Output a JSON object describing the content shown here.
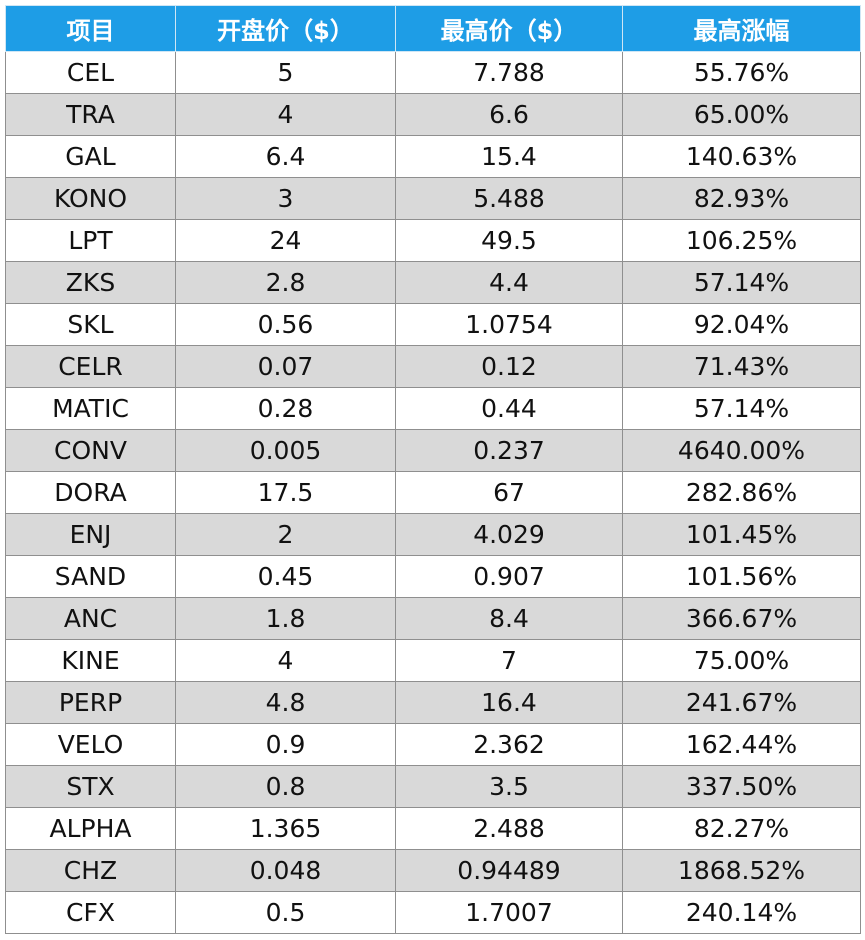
{
  "table": {
    "headers": [
      "项目",
      "开盘价（$）",
      "最高价（$）",
      "最高涨幅"
    ],
    "rows": [
      [
        "CEL",
        "5",
        "7.788",
        "55.76%"
      ],
      [
        "TRA",
        "4",
        "6.6",
        "65.00%"
      ],
      [
        "GAL",
        "6.4",
        "15.4",
        "140.63%"
      ],
      [
        "KONO",
        "3",
        "5.488",
        "82.93%"
      ],
      [
        "LPT",
        "24",
        "49.5",
        "106.25%"
      ],
      [
        "ZKS",
        "2.8",
        "4.4",
        "57.14%"
      ],
      [
        "SKL",
        "0.56",
        "1.0754",
        "92.04%"
      ],
      [
        "CELR",
        "0.07",
        "0.12",
        "71.43%"
      ],
      [
        "MATIC",
        "0.28",
        "0.44",
        "57.14%"
      ],
      [
        "CONV",
        "0.005",
        "0.237",
        "4640.00%"
      ],
      [
        "DORA",
        "17.5",
        "67",
        "282.86%"
      ],
      [
        "ENJ",
        "2",
        "4.029",
        "101.45%"
      ],
      [
        "SAND",
        "0.45",
        "0.907",
        "101.56%"
      ],
      [
        "ANC",
        "1.8",
        "8.4",
        "366.67%"
      ],
      [
        "KINE",
        "4",
        "7",
        "75.00%"
      ],
      [
        "PERP",
        "4.8",
        "16.4",
        "241.67%"
      ],
      [
        "VELO",
        "0.9",
        "2.362",
        "162.44%"
      ],
      [
        "STX",
        "0.8",
        "3.5",
        "337.50%"
      ],
      [
        "ALPHA",
        "1.365",
        "2.488",
        "82.27%"
      ],
      [
        "CHZ",
        "0.048",
        "0.94489",
        "1868.52%"
      ],
      [
        "CFX",
        "0.5",
        "1.7007",
        "240.14%"
      ]
    ]
  },
  "colors": {
    "header_bg": "#1e9de6",
    "header_text": "#ffffff",
    "alt_row_bg": "#d9d9d9",
    "row_bg": "#ffffff"
  }
}
